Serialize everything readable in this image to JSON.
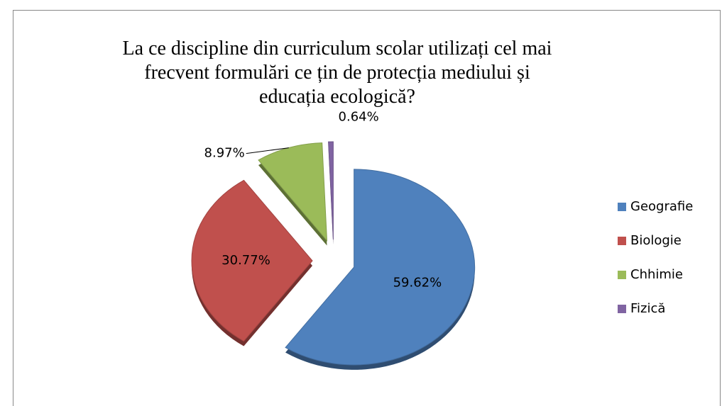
{
  "chart_data": {
    "type": "pie",
    "title": "La ce discipline din curriculum scolar utilizați cel mai frecvent formulări ce țin de  protecția mediului și educația ecologică?",
    "categories": [
      "Geografie",
      "Biologie",
      "Chhimie",
      "Fizică"
    ],
    "values": [
      59.62,
      30.77,
      8.97,
      0.64
    ],
    "value_labels": [
      "59.62%",
      "30.77%",
      "8.97%",
      "0.64%"
    ],
    "colors": [
      "#4f81bd",
      "#c0504d",
      "#9bbb59",
      "#8064a2"
    ],
    "legend": "right"
  }
}
